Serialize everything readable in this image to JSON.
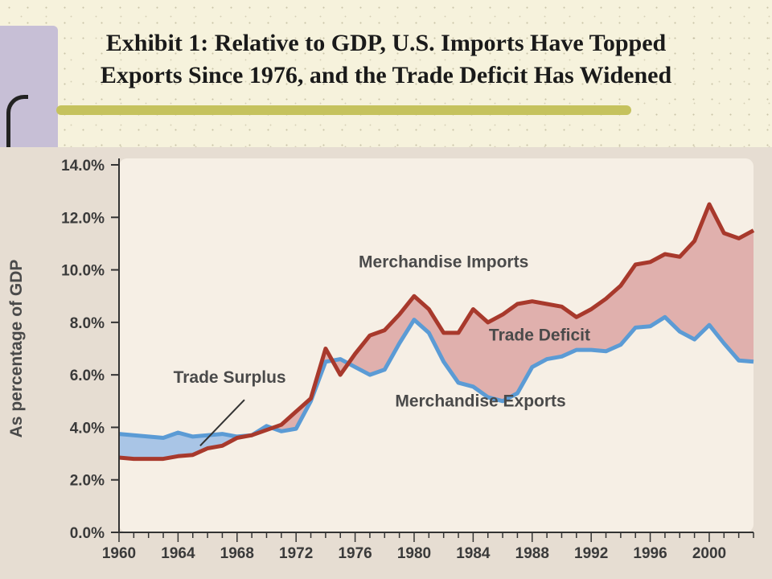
{
  "slide": {
    "title_line1": "Exhibit 1:  Relative to GDP, U.S. Imports Have Topped",
    "title_line2": "Exports Since 1976, and the Trade Deficit Has Widened"
  },
  "colors": {
    "imports_line": "#a8392c",
    "exports_line": "#5b9bd5",
    "deficit_fill": "#e0b0ad",
    "surplus_fill": "#a9c5e6",
    "plot_background": "#f6efe5",
    "panel_background": "#e6ddd2",
    "accent_bar": "#c5c25d",
    "side_bar": "#c7bfd6"
  },
  "chart_data": {
    "type": "line",
    "title": "",
    "xlabel": "",
    "ylabel": "As percentage of GDP",
    "xlim": [
      1960,
      2003
    ],
    "ylim": [
      0,
      14
    ],
    "x_ticks": [
      "1960",
      "1964",
      "1968",
      "1972",
      "1976",
      "1980",
      "1984",
      "1988",
      "1992",
      "1996",
      "2000"
    ],
    "y_ticks": [
      "0.0%",
      "2.0%",
      "4.0%",
      "6.0%",
      "8.0%",
      "10.0%",
      "12.0%",
      "14.0%"
    ],
    "grid": false,
    "x": [
      1960,
      1961,
      1962,
      1963,
      1964,
      1965,
      1966,
      1967,
      1968,
      1969,
      1970,
      1971,
      1972,
      1973,
      1974,
      1975,
      1976,
      1977,
      1978,
      1979,
      1980,
      1981,
      1982,
      1983,
      1984,
      1985,
      1986,
      1987,
      1988,
      1989,
      1990,
      1991,
      1992,
      1993,
      1994,
      1995,
      1996,
      1997,
      1998,
      1999,
      2000,
      2001,
      2002,
      2003
    ],
    "series": [
      {
        "name": "Merchandise Imports",
        "values": [
          2.85,
          2.8,
          2.8,
          2.8,
          2.9,
          2.95,
          3.2,
          3.3,
          3.6,
          3.7,
          3.9,
          4.1,
          4.6,
          5.1,
          7.0,
          6.0,
          6.8,
          7.5,
          7.7,
          8.3,
          9.0,
          8.5,
          7.6,
          7.6,
          8.5,
          8.0,
          8.3,
          8.7,
          8.8,
          8.7,
          8.6,
          8.2,
          8.5,
          8.9,
          9.4,
          10.2,
          10.3,
          10.6,
          10.5,
          11.1,
          12.5,
          11.4,
          11.2,
          11.5
        ]
      },
      {
        "name": "Merchandise Exports",
        "values": [
          3.75,
          3.7,
          3.65,
          3.6,
          3.8,
          3.65,
          3.7,
          3.75,
          3.65,
          3.7,
          4.05,
          3.85,
          3.95,
          5.0,
          6.5,
          6.6,
          6.3,
          6.0,
          6.2,
          7.2,
          8.1,
          7.6,
          6.5,
          5.7,
          5.55,
          5.15,
          5.0,
          5.3,
          6.3,
          6.6,
          6.7,
          6.95,
          6.95,
          6.9,
          7.15,
          7.8,
          7.85,
          8.2,
          7.65,
          7.35,
          7.9,
          7.2,
          6.55,
          6.5
        ]
      }
    ],
    "annotations": [
      {
        "text": "Merchandise Imports",
        "x": 1982,
        "y": 10.1
      },
      {
        "text": "Trade Deficit",
        "x": 1988.5,
        "y": 7.3
      },
      {
        "text": "Merchandise Exports",
        "x": 1984.5,
        "y": 4.8
      },
      {
        "text": "Trade Surplus",
        "x": 1967.5,
        "y": 5.7
      }
    ],
    "surplus_pointer": {
      "from": [
        1968.5,
        5.05
      ],
      "to": [
        1965.5,
        3.3
      ]
    }
  }
}
